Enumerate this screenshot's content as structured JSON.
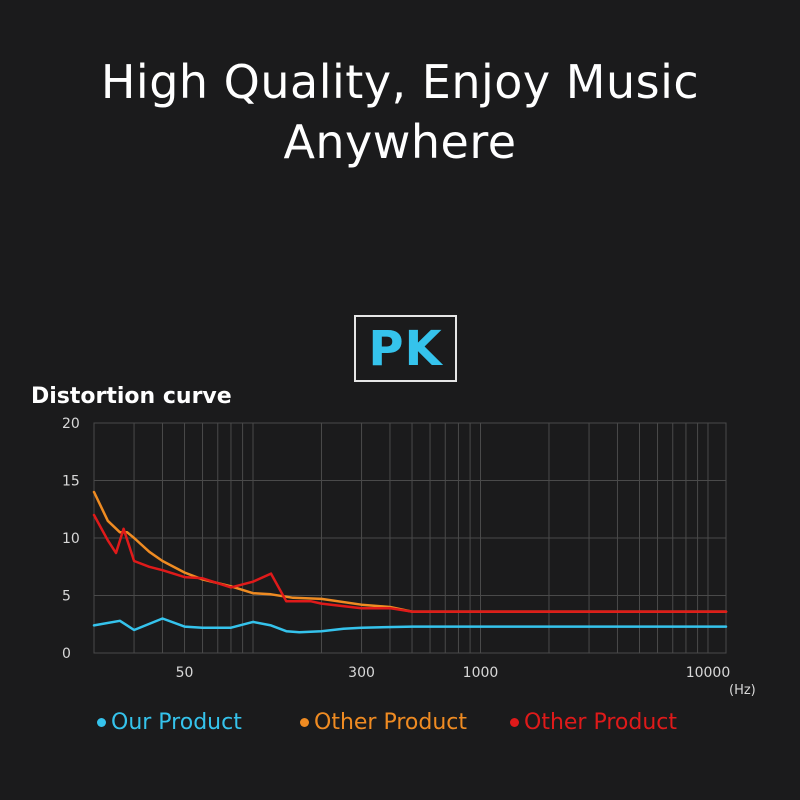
{
  "headline": {
    "line1": "High Quality, Enjoy Music",
    "line2": "Anywhere"
  },
  "badge": {
    "label": "PK"
  },
  "chart_data": {
    "type": "line",
    "title": "Distortion curve",
    "xscale": "log",
    "xlim": [
      20,
      12000
    ],
    "ylim": [
      0,
      20
    ],
    "yticks": [
      "0",
      "5",
      "10",
      "15",
      "20"
    ],
    "xticks": [
      {
        "value": 50,
        "label": "50"
      },
      {
        "value": 300,
        "label": "300"
      },
      {
        "value": 1000,
        "label": "1000"
      },
      {
        "value": 10000,
        "label": "10000"
      }
    ],
    "x_unit": "(Hz)",
    "grid": true,
    "legend_position": "bottom",
    "series": [
      {
        "name": "Our Product",
        "color": "#35c3ec",
        "x": [
          20,
          26,
          30,
          40,
          50,
          60,
          80,
          100,
          120,
          140,
          160,
          200,
          250,
          300,
          500,
          1000,
          5000,
          12000
        ],
        "y": [
          2.4,
          2.8,
          2.0,
          3.0,
          2.3,
          2.2,
          2.2,
          2.7,
          2.4,
          1.9,
          1.8,
          1.9,
          2.1,
          2.2,
          2.3,
          2.3,
          2.3,
          2.3
        ]
      },
      {
        "name": "Other Product",
        "color": "#ef8b22",
        "x": [
          20,
          23,
          26,
          28,
          30,
          35,
          40,
          50,
          60,
          80,
          100,
          120,
          150,
          200,
          300,
          400,
          500,
          1000,
          5000,
          12000
        ],
        "y": [
          14,
          11.5,
          10.5,
          10.5,
          10.0,
          8.8,
          8.0,
          7.0,
          6.4,
          5.8,
          5.2,
          5.1,
          4.8,
          4.7,
          4.2,
          4.0,
          3.6,
          3.6,
          3.6,
          3.6
        ]
      },
      {
        "name": "Other Product",
        "color": "#df1a1a",
        "x": [
          20,
          23,
          25,
          27,
          30,
          35,
          40,
          50,
          60,
          80,
          100,
          120,
          140,
          160,
          180,
          200,
          300,
          400,
          500,
          1000,
          5000,
          12000
        ],
        "y": [
          12,
          9.8,
          8.7,
          10.8,
          8.0,
          7.5,
          7.2,
          6.6,
          6.5,
          5.7,
          6.2,
          6.9,
          4.5,
          4.5,
          4.5,
          4.3,
          3.9,
          3.9,
          3.6,
          3.6,
          3.6,
          3.6
        ]
      }
    ]
  }
}
